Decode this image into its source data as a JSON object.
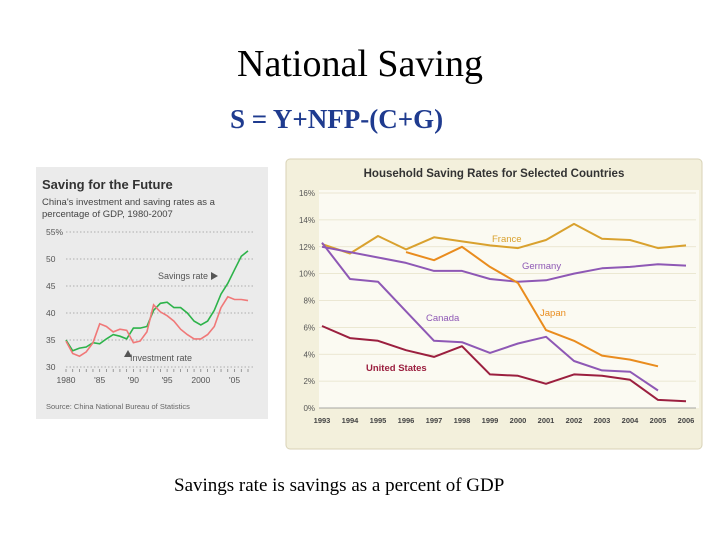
{
  "slide": {
    "title": "National Saving",
    "equation": "S = Y+NFP-(C+G)",
    "caption": "Savings rate is savings as a percent of GDP"
  },
  "colors": {
    "gold": "#D9A12E",
    "purple": "#8E58B5",
    "orange": "#E98C1E",
    "maroon": "#9B1F3F",
    "china_green": "#2DB34A",
    "china_red": "#F07878"
  },
  "chart_data": [
    {
      "type": "line",
      "title": "Saving for the Future",
      "subtitle_lines": [
        "China's investment and saving rates as a",
        "percentage of GDP, 1980-2007"
      ],
      "y_ticks": [
        "55%",
        "50",
        "45",
        "40",
        "35",
        "30"
      ],
      "ylim": [
        30,
        55
      ],
      "x_ticks": [
        "1980",
        "'85",
        "'90",
        "'95",
        "2000",
        "'05"
      ],
      "xlim": [
        1980,
        2007
      ],
      "source": "Source: China National Bureau of Statistics",
      "series": [
        {
          "name": "Savings rate",
          "color": "#2DB34A",
          "x": [
            1980,
            1981,
            1982,
            1983,
            1984,
            1985,
            1986,
            1987,
            1988,
            1989,
            1990,
            1991,
            1992,
            1993,
            1994,
            1995,
            1996,
            1997,
            1998,
            1999,
            2000,
            2001,
            2002,
            2003,
            2004,
            2005,
            2006,
            2007
          ],
          "values": [
            35,
            33,
            33.5,
            33.7,
            34.5,
            34.3,
            35.2,
            36,
            35.7,
            35.2,
            37.2,
            37.2,
            37.5,
            40.5,
            41.8,
            42,
            41,
            41,
            40,
            38.5,
            37.8,
            38.5,
            40.5,
            43.5,
            45.5,
            48,
            50.5,
            51.5
          ]
        },
        {
          "name": "Investment rate",
          "color": "#F07878",
          "x": [
            1980,
            1981,
            1982,
            1983,
            1984,
            1985,
            1986,
            1987,
            1988,
            1989,
            1990,
            1991,
            1992,
            1993,
            1994,
            1995,
            1996,
            1997,
            1998,
            1999,
            2000,
            2001,
            2002,
            2003,
            2004,
            2005,
            2006,
            2007
          ],
          "values": [
            34.8,
            32.5,
            32,
            32.8,
            34.5,
            38,
            37.5,
            36.5,
            37,
            36.8,
            34.5,
            34.8,
            36.5,
            41.5,
            40.2,
            39.5,
            38.5,
            37,
            36,
            35.2,
            35.2,
            36,
            37.5,
            41,
            43,
            42.5,
            42.5,
            42.3
          ]
        }
      ],
      "annotations": [
        "Savings rate",
        "Investment rate"
      ]
    },
    {
      "type": "line",
      "title": "Household Saving Rates for Selected Countries",
      "y_ticks": [
        "16%",
        "14%",
        "12%",
        "10%",
        "8%",
        "6%",
        "4%",
        "2%",
        "0%"
      ],
      "ylim": [
        0,
        16
      ],
      "categories": [
        "1993",
        "1994",
        "1995",
        "1996",
        "1997",
        "1998",
        "1999",
        "2000",
        "2001",
        "2002",
        "2003",
        "2004",
        "2005",
        "2006"
      ],
      "series": [
        {
          "name": "France",
          "color": "#D9A12E",
          "values": [
            12.2,
            11.5,
            12.8,
            11.8,
            12.7,
            12.4,
            12.1,
            11.9,
            12.5,
            13.7,
            12.6,
            12.5,
            11.9,
            12.1
          ]
        },
        {
          "name": "Germany",
          "color": "#8E58B5",
          "values": [
            12.0,
            11.6,
            11.2,
            10.8,
            10.2,
            10.2,
            9.6,
            9.4,
            9.5,
            10.0,
            10.4,
            10.5,
            10.7,
            10.6
          ]
        },
        {
          "name": "Japan",
          "color": "#E98C1E",
          "values": [
            null,
            null,
            null,
            11.6,
            11.0,
            12.0,
            10.5,
            9.3,
            5.8,
            5.0,
            3.9,
            3.6,
            3.1,
            null
          ]
        },
        {
          "name": "Canada",
          "color": "#8E58B5",
          "values": [
            12.3,
            9.6,
            9.4,
            7.2,
            5.0,
            4.9,
            4.1,
            4.8,
            5.3,
            3.5,
            2.8,
            2.7,
            1.3,
            null
          ]
        },
        {
          "name": "United States",
          "color": "#9B1F3F",
          "values": [
            6.1,
            5.2,
            5.0,
            4.3,
            3.8,
            4.6,
            2.5,
            2.4,
            1.8,
            2.5,
            2.4,
            2.1,
            0.6,
            0.5
          ]
        }
      ]
    }
  ]
}
